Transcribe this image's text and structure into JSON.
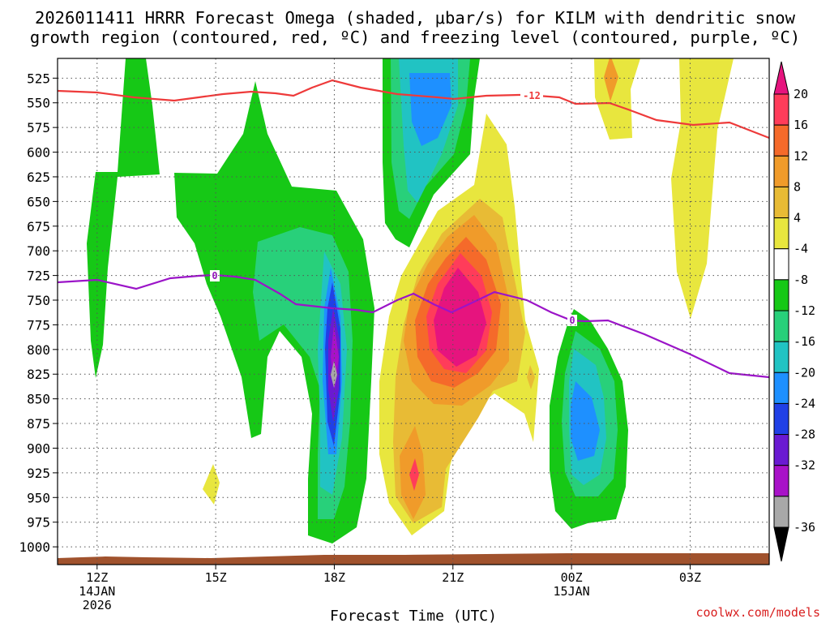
{
  "chart_data": {
    "type": "heatmap",
    "title_line1": "2026011411 HRRR Forecast Omega (shaded, μbar/s) for KILM with dendritic snow",
    "title_line2": "growth region (contoured, red, ºC) and freezing level (contoured, purple, ºC)",
    "xlabel": "Forecast Time (UTC)",
    "ylabel": "",
    "credit": "coolwx.com/models",
    "x_ticks": [
      {
        "hour": 12,
        "label": "12Z",
        "sub1": "14JAN",
        "sub2": "2026"
      },
      {
        "hour": 15,
        "label": "15Z",
        "sub1": "",
        "sub2": ""
      },
      {
        "hour": 18,
        "label": "18Z",
        "sub1": "",
        "sub2": ""
      },
      {
        "hour": 21,
        "label": "21Z",
        "sub1": "",
        "sub2": ""
      },
      {
        "hour": 24,
        "label": "00Z",
        "sub1": "15JAN",
        "sub2": ""
      },
      {
        "hour": 27,
        "label": "03Z",
        "sub1": "",
        "sub2": ""
      }
    ],
    "y_ticks": [
      525,
      550,
      575,
      600,
      625,
      650,
      675,
      700,
      725,
      750,
      775,
      800,
      825,
      850,
      875,
      900,
      925,
      950,
      975,
      1000
    ],
    "xlim_hours": [
      11,
      29
    ],
    "ylim_hPa": [
      505,
      1018
    ],
    "colorbar": {
      "labels": [
        "20",
        "16",
        "12",
        "8",
        "4",
        "-4",
        "-8",
        "-12",
        "-16",
        "-20",
        "-24",
        "-28",
        "-32",
        "-36"
      ],
      "colors": [
        "#ff3c5a",
        "#f56a2a",
        "#f09b2a",
        "#e8bb35",
        "#e8e63e",
        "#ffffff",
        "#16c816",
        "#28d07a",
        "#21c3c3",
        "#1e90ff",
        "#2040e6",
        "#6a1ad2",
        "#a812c8",
        "#a8a8a8"
      ],
      "top_color": "#e6147e",
      "bottom_color": "#000000"
    },
    "dgz_contour": {
      "label": "-12",
      "color": "#ee3a3a"
    },
    "freezing_contour": {
      "label": "0",
      "color": "#9b14c8"
    },
    "terrain_color": "#a0522d"
  }
}
